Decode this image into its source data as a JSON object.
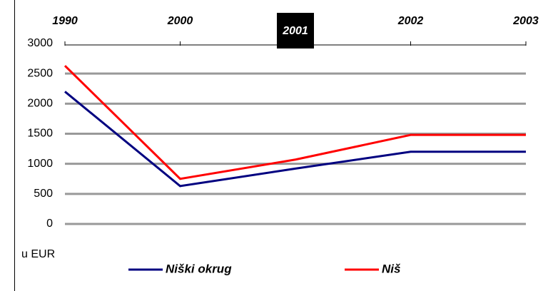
{
  "chart_data": {
    "type": "line",
    "categories": [
      "1990",
      "2000",
      "2001",
      "2002",
      "2003"
    ],
    "series": [
      {
        "name": "Niški okrug",
        "color": "#000080",
        "values": [
          2200,
          630,
          920,
          1200,
          1200
        ]
      },
      {
        "name": "Niš",
        "color": "#ff0000",
        "values": [
          2630,
          750,
          1070,
          1480,
          1480
        ]
      }
    ],
    "ylim": [
      0,
      3000
    ],
    "yticks": [
      0,
      500,
      1000,
      1500,
      2000,
      2500,
      3000
    ],
    "grid": true,
    "axis_label": "u EUR",
    "highlighted_category": "2001"
  }
}
